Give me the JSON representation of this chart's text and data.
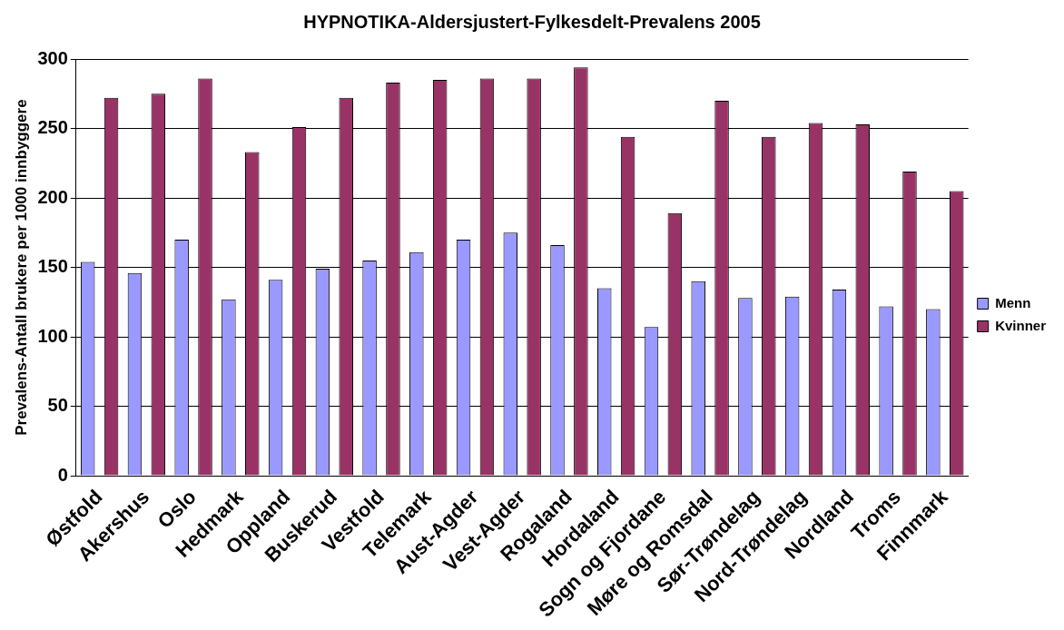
{
  "chart_data": {
    "type": "bar",
    "title": "HYPNOTIKA-Aldersjustert-Fylkesdelt-Prevalens 2005",
    "ylabel": "Prevalens-Antall brukere per 1000 innbyggere",
    "categories": [
      "Østfold",
      "Akershus",
      "Oslo",
      "Hedmark",
      "Oppland",
      "Buskerud",
      "Vestfold",
      "Telemark",
      "Aust-Agder",
      "Vest-Agder",
      "Rogaland",
      "Hordaland",
      "Sogn og Fjordane",
      "Møre og Romsdal",
      "Sør-Trøndelag",
      "Nord-Trøndelag",
      "Nordland",
      "Troms",
      "Finnmark"
    ],
    "series": [
      {
        "name": "Menn",
        "color": "#9999ff",
        "values": [
          154,
          146,
          170,
          127,
          141,
          149,
          155,
          161,
          170,
          175,
          166,
          135,
          107,
          140,
          128,
          129,
          134,
          122,
          120
        ]
      },
      {
        "name": "Kvinner",
        "color": "#993366",
        "values": [
          272,
          275,
          286,
          233,
          251,
          272,
          283,
          285,
          286,
          286,
          294,
          244,
          189,
          270,
          244,
          254,
          253,
          219,
          205
        ]
      }
    ],
    "ylim": [
      0,
      300
    ],
    "yticks": [
      0,
      50,
      100,
      150,
      200,
      250,
      300
    ],
    "grid": "y",
    "legend": "right"
  }
}
